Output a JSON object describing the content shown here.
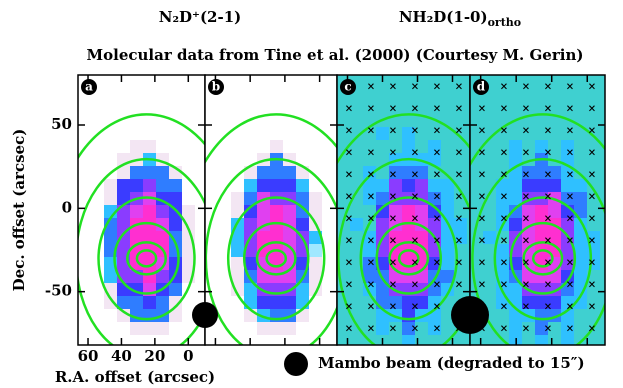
{
  "chart_data": {
    "type": "map",
    "title_left": "N₂D⁺(2-1)",
    "title_right": {
      "main": "NH₂D(1-0)",
      "sub": "ortho"
    },
    "subtitle": "Molecular data from Tine et al. (2000) (Courtesy M. Gerin)",
    "panels": [
      "a",
      "b",
      "c",
      "d"
    ],
    "xlabel": "R.A. offset (arcsec)",
    "ylabel": "Dec. offset (arcsec)",
    "xlim": [
      66,
      -10
    ],
    "xticks": [
      60,
      40,
      20,
      0
    ],
    "ylim": [
      -82,
      80
    ],
    "yticks": [
      50,
      0,
      -50
    ],
    "legend": "Mambo beam (degraded to 15″)"
  }
}
